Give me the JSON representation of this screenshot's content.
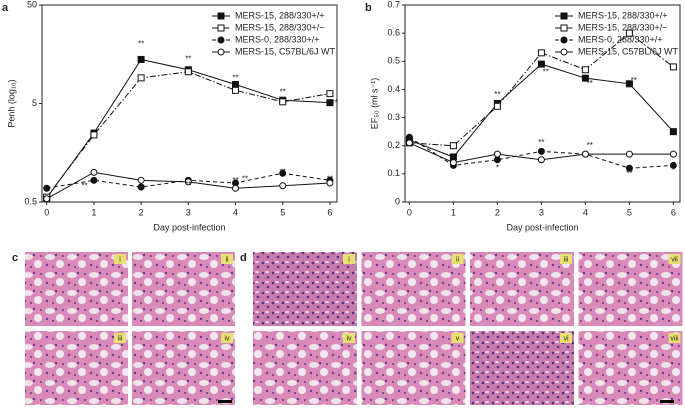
{
  "chart_data": [
    {
      "type": "line",
      "panel_label": "a",
      "y_label": "Penh (log₁₀)",
      "x_label": "Day post-infection",
      "x": [
        0,
        1,
        2,
        3,
        4,
        5,
        6
      ],
      "xlim": [
        -0.1,
        6.15
      ],
      "xticks": [
        0,
        1,
        2,
        3,
        4,
        5,
        6
      ],
      "log_y": true,
      "ylim": [
        0.5,
        50
      ],
      "yticks": [
        0.5,
        5,
        50
      ],
      "legend": "upper right",
      "series": [
        {
          "name": "MERS-15, 288/330+/+",
          "color": "#111111",
          "marker": "square-filled",
          "dash": "solid",
          "values": [
            0.55,
            2.5,
            14,
            11,
            7.8,
            5.4,
            5.1
          ]
        },
        {
          "name": "MERS-15, 288/330+/−",
          "color": "#111111",
          "marker": "square-open",
          "dash": "dashdot",
          "values": [
            0.56,
            2.4,
            9.1,
            10.5,
            6.8,
            5.2,
            6.3
          ]
        },
        {
          "name": "MERS-0, 288/330+/+",
          "color": "#111111",
          "marker": "circle-filled",
          "dash": "dashed",
          "values": [
            0.69,
            0.83,
            0.71,
            0.83,
            0.78,
            0.98,
            0.83
          ]
        },
        {
          "name": "MERS-15, C57BL/6J WT",
          "color": "#111111",
          "marker": "circle-open",
          "dash": "solid",
          "values": [
            0.54,
            1.0,
            0.83,
            0.8,
            0.69,
            0.73,
            0.78
          ]
        }
      ],
      "annotations": [
        {
          "text": "**",
          "x": 2,
          "y": 20
        },
        {
          "text": "**",
          "x": 3,
          "y": 14
        },
        {
          "text": "**",
          "x": 4,
          "y": 9
        },
        {
          "text": "**",
          "x": 5,
          "y": 6.5
        },
        {
          "text": "**",
          "x": 6.1,
          "y": 5
        },
        {
          "text": "**",
          "x": 2,
          "y": 0.68
        },
        {
          "text": "**",
          "x": 3,
          "y": 0.75
        },
        {
          "text": "**",
          "x": 4,
          "y": 0.82
        },
        {
          "text": "**",
          "x": 5,
          "y": 1.0
        },
        {
          "text": "**",
          "x": 6,
          "y": 0.85
        },
        {
          "text": "**",
          "x": 0.8,
          "y": 0.72
        },
        {
          "text": "**",
          "x": 4.2,
          "y": 0.85
        }
      ]
    },
    {
      "type": "line",
      "panel_label": "b",
      "y_label": "EF₅₀ (ml s⁻¹)",
      "x_label": "Day post-infection",
      "x": [
        0,
        1,
        2,
        3,
        4,
        5,
        6
      ],
      "xlim": [
        -0.1,
        6.15
      ],
      "xticks": [
        0,
        1,
        2,
        3,
        4,
        5,
        6
      ],
      "log_y": false,
      "ylim": [
        0,
        0.7
      ],
      "yticks": [
        0,
        0.1,
        0.2,
        0.3,
        0.4,
        0.5,
        0.6,
        0.7
      ],
      "legend": "upper right",
      "series": [
        {
          "name": "MERS-15, 288/330+/+",
          "color": "#111111",
          "marker": "square-filled",
          "dash": "solid",
          "values": [
            0.22,
            0.16,
            0.35,
            0.49,
            0.44,
            0.42,
            0.25
          ]
        },
        {
          "name": "MERS-15, 288/330+/−",
          "color": "#111111",
          "marker": "square-open",
          "dash": "dashdot",
          "values": [
            0.21,
            0.2,
            0.34,
            0.53,
            0.47,
            0.6,
            0.48
          ]
        },
        {
          "name": "MERS-0, 288/330+/+",
          "color": "#111111",
          "marker": "circle-filled",
          "dash": "dashed",
          "values": [
            0.23,
            0.13,
            0.15,
            0.18,
            0.17,
            0.12,
            0.13
          ]
        },
        {
          "name": "MERS-15, C57BL/6J WT",
          "color": "#111111",
          "marker": "circle-open",
          "dash": "solid",
          "values": [
            0.21,
            0.14,
            0.17,
            0.15,
            0.17,
            0.17,
            0.17
          ]
        }
      ],
      "annotations": [
        {
          "text": "**",
          "x": 2,
          "y": 0.38
        },
        {
          "text": "**",
          "x": 3.1,
          "y": 0.46
        },
        {
          "text": "**",
          "x": 4.1,
          "y": 0.42
        },
        {
          "text": "**",
          "x": 5.1,
          "y": 0.43
        },
        {
          "text": "**",
          "x": 3,
          "y": 0.21
        },
        {
          "text": "**",
          "x": 4.1,
          "y": 0.2
        },
        {
          "text": "**",
          "x": 5,
          "y": 0.1
        },
        {
          "text": "*",
          "x": 6,
          "y": 0.11
        },
        {
          "text": "*",
          "x": 2,
          "y": 0.12
        }
      ]
    }
  ],
  "figure_panels": [
    {
      "label": "c",
      "images": [
        "i",
        "ii",
        "iii",
        "iv"
      ]
    },
    {
      "label": "d",
      "images": [
        "i",
        "ii",
        "iii",
        "vii",
        "iv",
        "v",
        "vi",
        "viii"
      ]
    }
  ]
}
